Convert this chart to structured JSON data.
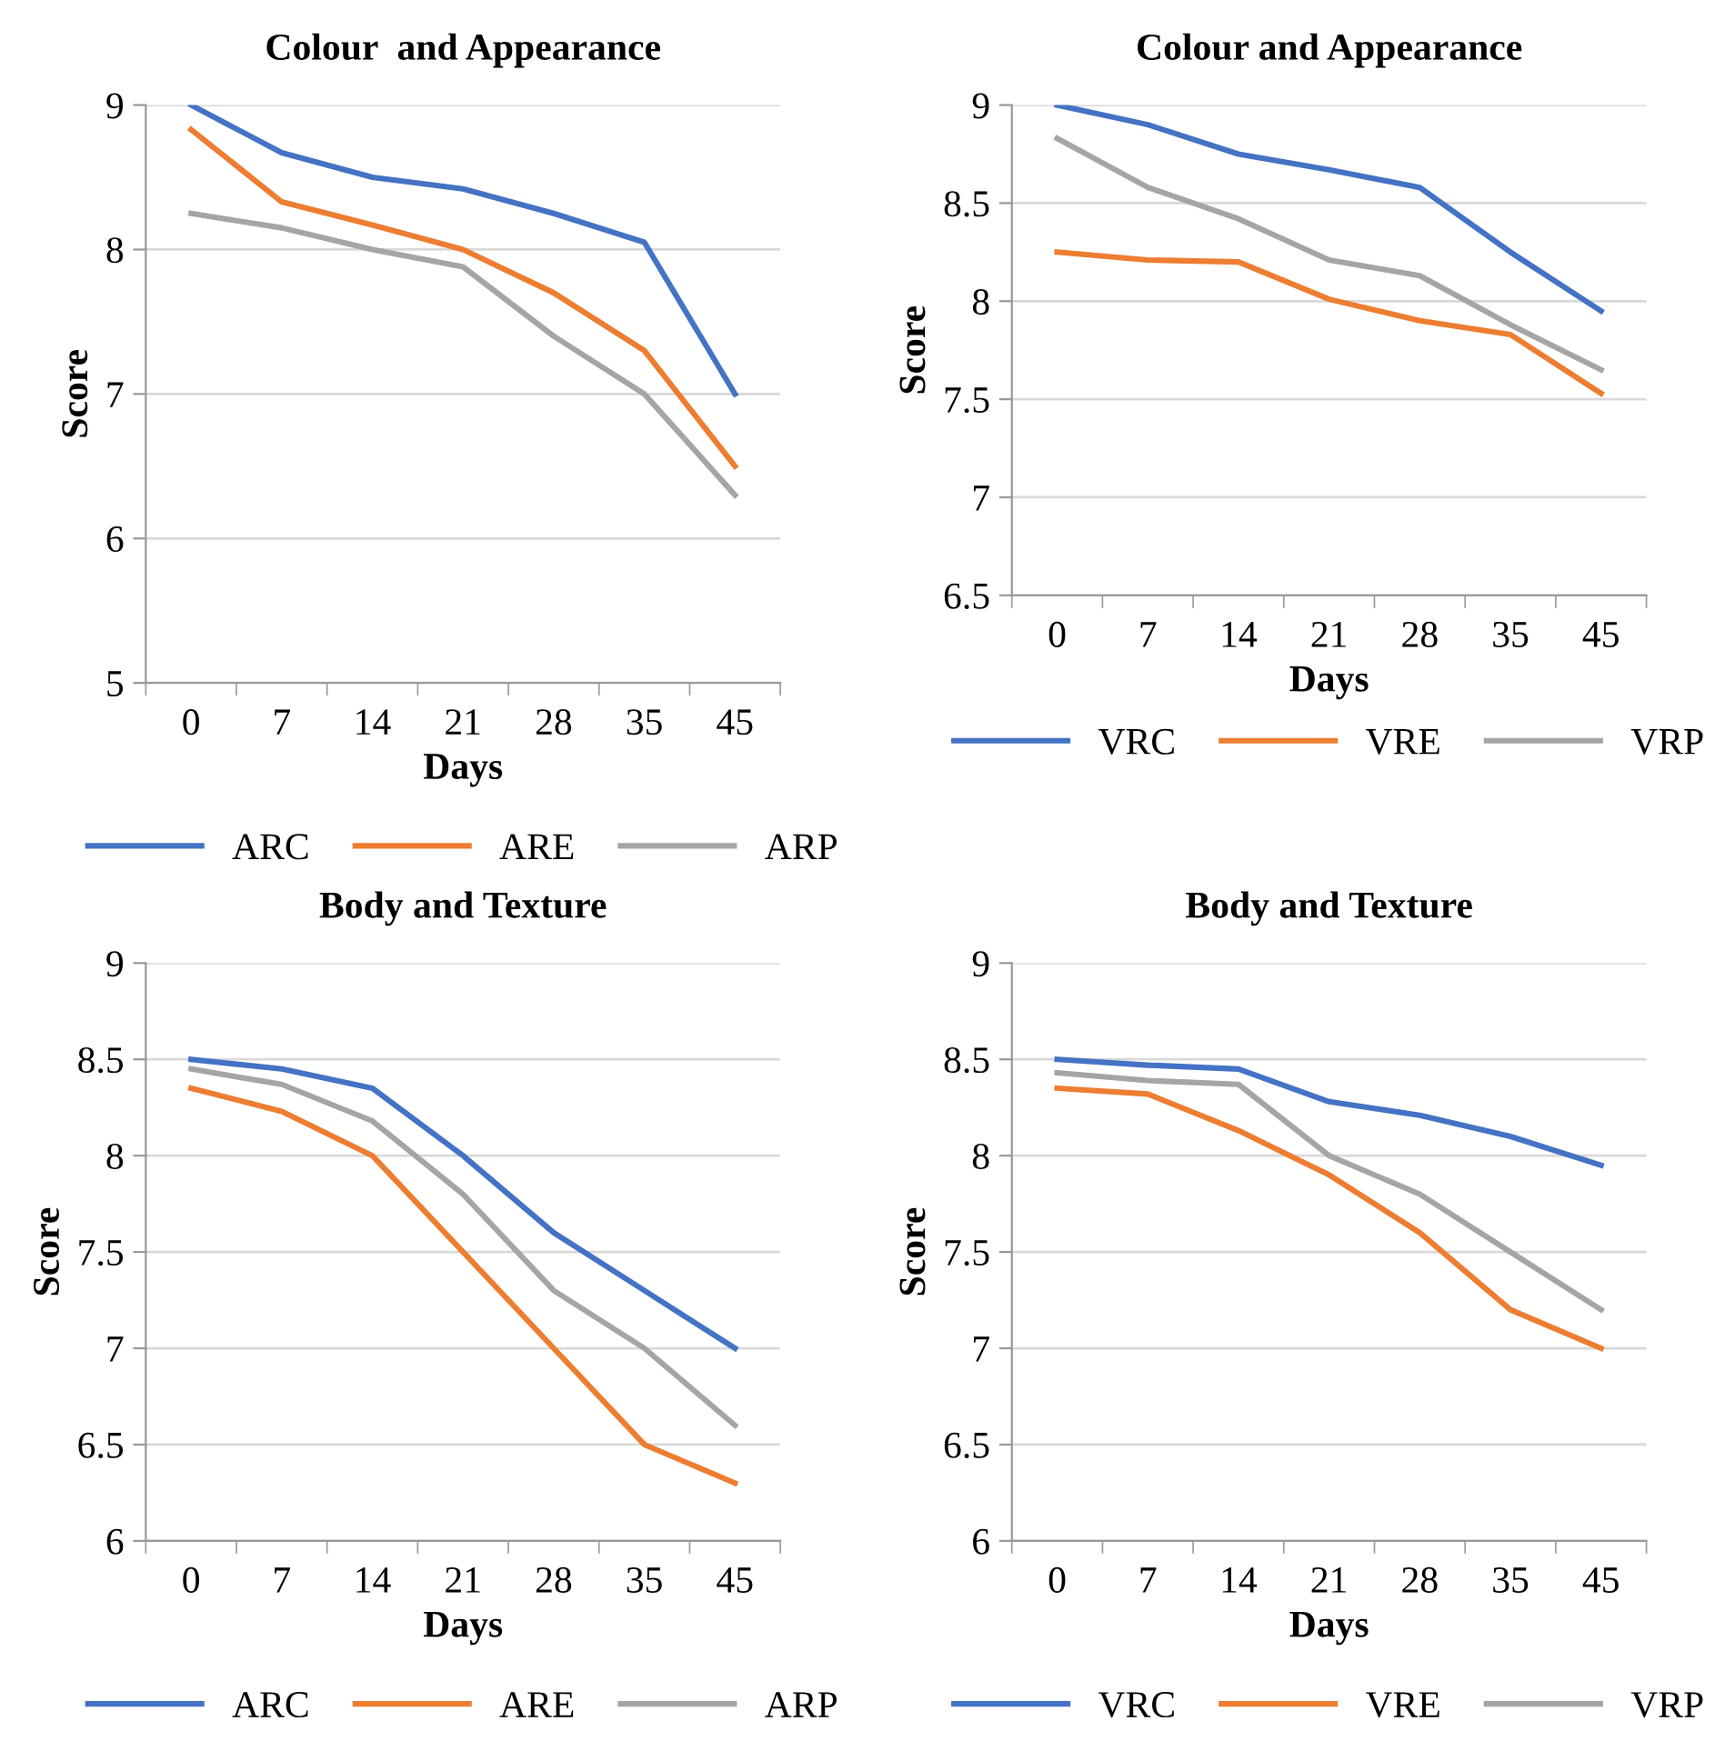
{
  "chart_data": [
    {
      "type": "line",
      "title": "Colour  and Appearance",
      "xlabel": "Days",
      "ylabel": "Score",
      "categories": [
        "0",
        "7",
        "14",
        "21",
        "28",
        "35",
        "45"
      ],
      "ylim": [
        5,
        9
      ],
      "yticks": [
        5,
        6,
        7,
        8,
        9
      ],
      "grid": "y",
      "legend": "bottom",
      "marker": "none",
      "line_style": "solid",
      "series": [
        {
          "name": "ARC",
          "color": "#4472c4",
          "values": [
            9.0,
            8.67,
            8.5,
            8.42,
            8.25,
            8.05,
            7.0
          ]
        },
        {
          "name": "ARE",
          "color": "#ed7d31",
          "values": [
            8.83,
            8.33,
            8.17,
            8.0,
            7.7,
            7.3,
            6.5
          ]
        },
        {
          "name": "ARP",
          "color": "#a5a5a5",
          "values": [
            8.25,
            8.15,
            8.0,
            7.88,
            7.4,
            7.0,
            6.3
          ]
        }
      ]
    },
    {
      "type": "line",
      "title": "Colour and Appearance",
      "xlabel": "Days",
      "ylabel": "Score",
      "categories": [
        "0",
        "7",
        "14",
        "21",
        "28",
        "35",
        "45"
      ],
      "ylim": [
        6.5,
        9
      ],
      "yticks": [
        6.5,
        7,
        7.5,
        8,
        8.5,
        9
      ],
      "grid": "y",
      "legend": "bottom",
      "marker": "none",
      "line_style": "solid",
      "series": [
        {
          "name": "VRC",
          "color": "#4472c4",
          "values": [
            9.0,
            8.9,
            8.75,
            8.67,
            8.58,
            8.25,
            7.95
          ]
        },
        {
          "name": "VRE",
          "color": "#ed7d31",
          "values": [
            8.25,
            8.21,
            8.2,
            8.01,
            7.9,
            7.83,
            7.53
          ]
        },
        {
          "name": "VRP",
          "color": "#a5a5a5",
          "values": [
            8.83,
            8.58,
            8.42,
            8.21,
            8.13,
            7.88,
            7.65
          ]
        }
      ]
    },
    {
      "type": "line",
      "title": "Body and Texture",
      "xlabel": "Days",
      "ylabel": "Score",
      "categories": [
        "0",
        "7",
        "14",
        "21",
        "28",
        "35",
        "45"
      ],
      "ylim": [
        6,
        9
      ],
      "yticks": [
        6,
        6.5,
        7,
        7.5,
        8,
        8.5,
        9
      ],
      "grid": "y",
      "legend": "bottom",
      "marker": "none",
      "line_style": "solid",
      "series": [
        {
          "name": "ARC",
          "color": "#4472c4",
          "values": [
            8.5,
            8.45,
            8.35,
            8.0,
            7.6,
            7.3,
            7.0
          ]
        },
        {
          "name": "ARE",
          "color": "#ed7d31",
          "values": [
            8.35,
            8.23,
            8.0,
            7.5,
            7.0,
            6.5,
            6.3
          ]
        },
        {
          "name": "ARP",
          "color": "#a5a5a5",
          "values": [
            8.45,
            8.37,
            8.18,
            7.8,
            7.3,
            7.0,
            6.6
          ]
        }
      ]
    },
    {
      "type": "line",
      "title": "Body and Texture",
      "xlabel": "Days",
      "ylabel": "Score",
      "categories": [
        "0",
        "7",
        "14",
        "21",
        "28",
        "35",
        "45"
      ],
      "ylim": [
        6,
        9
      ],
      "yticks": [
        6,
        6.5,
        7,
        7.5,
        8,
        8.5,
        9
      ],
      "grid": "y",
      "legend": "bottom",
      "marker": "none",
      "line_style": "solid",
      "series": [
        {
          "name": "VRC",
          "color": "#4472c4",
          "values": [
            8.5,
            8.47,
            8.45,
            8.28,
            8.21,
            8.1,
            7.95
          ]
        },
        {
          "name": "VRE",
          "color": "#ed7d31",
          "values": [
            8.35,
            8.32,
            8.13,
            7.9,
            7.6,
            7.2,
            7.0
          ]
        },
        {
          "name": "VRP",
          "color": "#a5a5a5",
          "values": [
            8.43,
            8.39,
            8.37,
            8.0,
            7.8,
            7.5,
            7.2
          ]
        }
      ]
    }
  ]
}
